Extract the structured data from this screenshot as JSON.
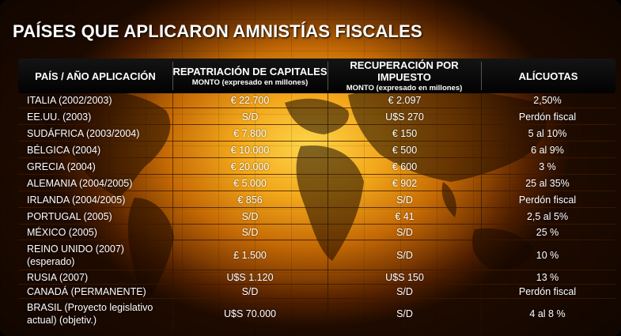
{
  "title": "PAÍSES QUE APLICARON AMNISTÍAS FISCALES",
  "headers": {
    "country": "PAÍS / AÑO APLICACIÓN",
    "repatriation": "REPATRIACIÓN DE CAPITALES",
    "repatriation_sub": "MONTO (expresado en millones)",
    "recovery": "RECUPERACIÓN POR IMPUESTO",
    "recovery_sub": "MONTO (expresado en millones)",
    "rates": "ALÍCUOTAS"
  },
  "rows": [
    {
      "country": "ITALIA (2002/2003)",
      "repatriation": "€ 22.700",
      "recovery": "€ 2.097",
      "rates": "2,50%"
    },
    {
      "country": "EE.UU. (2003)",
      "repatriation": "S/D",
      "recovery": "U$S  270",
      "rates": "Perdón fiscal"
    },
    {
      "country": "SUDÁFRICA (2003/2004)",
      "repatriation": "€ 7.800",
      "recovery": "€ 150",
      "rates": "5 al 10%"
    },
    {
      "country": "BÉLGICA (2004)",
      "repatriation": "€ 10.000",
      "recovery": "€ 500",
      "rates": "6 al 9%"
    },
    {
      "country": "GRECIA (2004)",
      "repatriation": "€ 20.000",
      "recovery": "€ 600",
      "rates": "3 %"
    },
    {
      "country": "ALEMANIA (2004/2005)",
      "repatriation": "€ 5.000",
      "recovery": "€ 902",
      "rates": "25 al 35%"
    },
    {
      "country": "IRLANDA (2004/2005)",
      "repatriation": "€ 856",
      "recovery": "S/D",
      "rates": "Perdón fiscal"
    },
    {
      "country": "PORTUGAL (2005)",
      "repatriation": "S/D",
      "recovery": "€ 41",
      "rates": "2,5 al 5%"
    },
    {
      "country": "MÉXICO (2005)",
      "repatriation": "S/D",
      "recovery": "S/D",
      "rates": "25 %"
    },
    {
      "country": "REINO UNIDO (2007) (esperado)",
      "repatriation": "£ 1.500",
      "recovery": "S/D",
      "rates": "10 %"
    },
    {
      "country": "RUSIA (2007)",
      "repatriation": "U$S 1.120",
      "recovery": "U$S 150",
      "rates": "13 %"
    },
    {
      "country": "CANADÁ (PERMANENTE)",
      "repatriation": "S/D",
      "recovery": "S/D",
      "rates": "Perdón fiscal"
    },
    {
      "country": "BRASIL (Proyecto legislativo actual) (objetiv.)",
      "repatriation": "U$S  70.000",
      "recovery": "S/D",
      "rates": "4 al 8 %"
    }
  ]
}
